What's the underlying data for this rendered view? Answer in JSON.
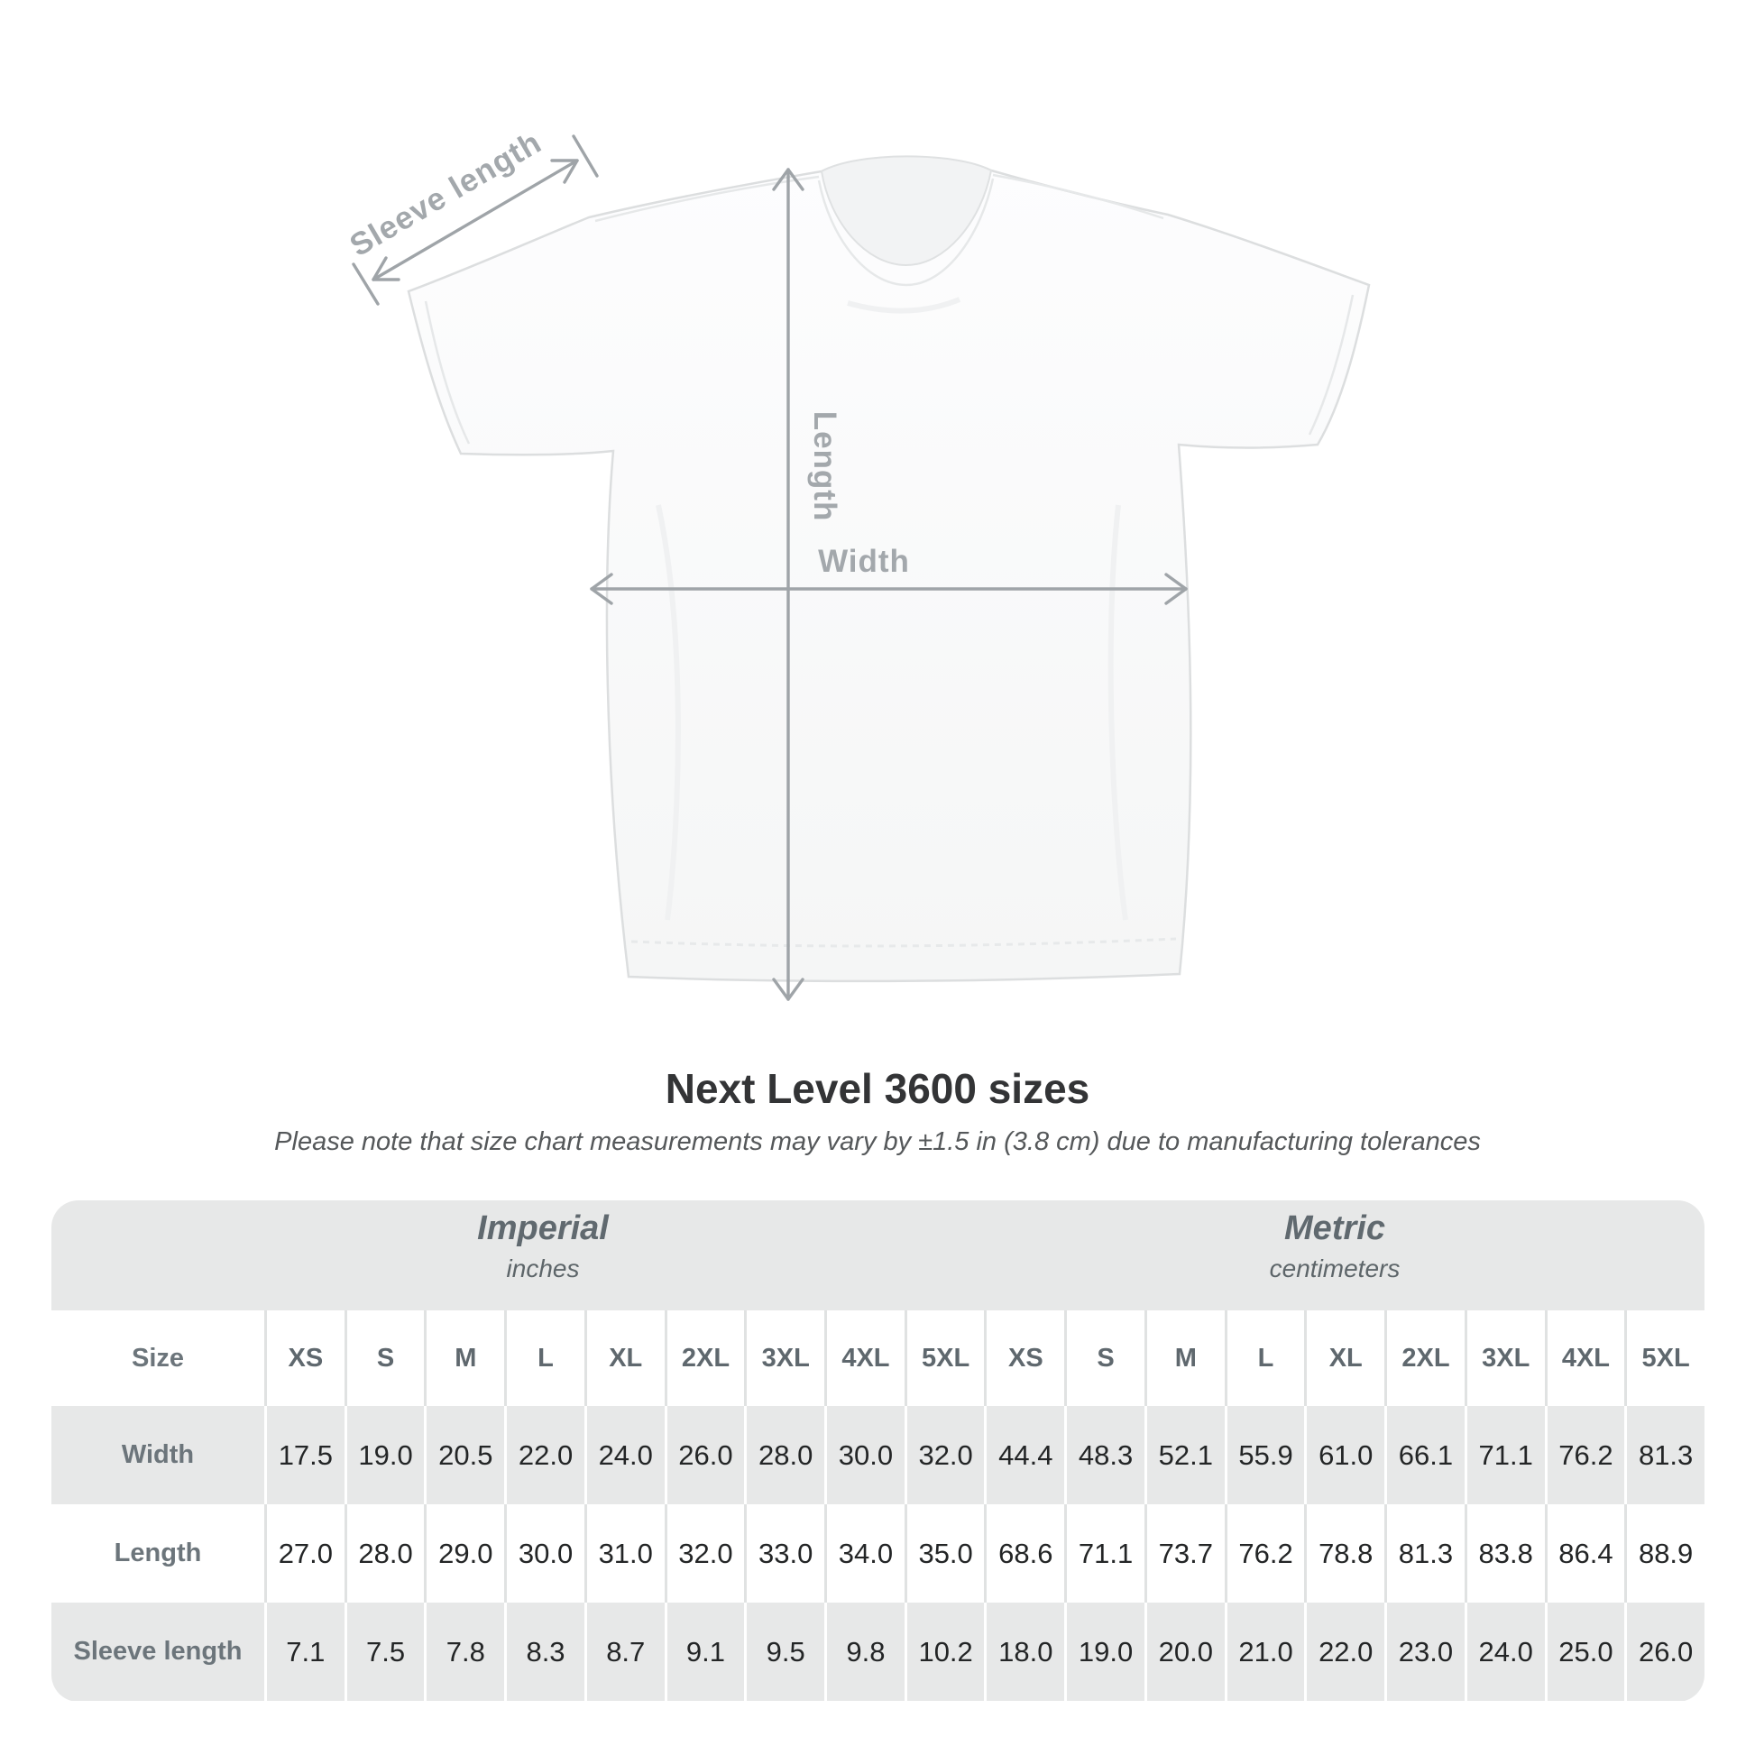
{
  "diagram": {
    "sleeve_label": "Sleeve length",
    "length_label": "Length",
    "width_label": "Width"
  },
  "chart_data": {
    "type": "table",
    "title": "Next Level 3600 sizes",
    "note": "Please note that size chart measurements may vary by ±1.5 in (3.8 cm) due to manufacturing tolerances",
    "unit_groups": [
      {
        "label": "Imperial",
        "units": "inches"
      },
      {
        "label": "Metric",
        "units": "centimeters"
      }
    ],
    "size_label": "Size",
    "sizes": [
      "XS",
      "S",
      "M",
      "L",
      "XL",
      "2XL",
      "3XL",
      "4XL",
      "5XL"
    ],
    "rows": [
      {
        "label": "Width",
        "imperial": [
          "17.5",
          "19.0",
          "20.5",
          "22.0",
          "24.0",
          "26.0",
          "28.0",
          "30.0",
          "32.0"
        ],
        "metric": [
          "44.4",
          "48.3",
          "52.1",
          "55.9",
          "61.0",
          "66.1",
          "71.1",
          "76.2",
          "81.3"
        ]
      },
      {
        "label": "Length",
        "imperial": [
          "27.0",
          "28.0",
          "29.0",
          "30.0",
          "31.0",
          "32.0",
          "33.0",
          "34.0",
          "35.0"
        ],
        "metric": [
          "68.6",
          "71.1",
          "73.7",
          "76.2",
          "78.8",
          "81.3",
          "83.8",
          "86.4",
          "88.9"
        ]
      },
      {
        "label": "Sleeve length",
        "imperial": [
          "7.1",
          "7.5",
          "7.8",
          "8.3",
          "8.7",
          "9.1",
          "9.5",
          "9.8",
          "10.2"
        ],
        "metric": [
          "18.0",
          "19.0",
          "20.0",
          "21.0",
          "22.0",
          "23.0",
          "24.0",
          "25.0",
          "26.0"
        ]
      }
    ]
  },
  "colors": {
    "table_band": "#e7e8e8",
    "dimension_arrows": "#9fa4a8",
    "title_text": "#333436"
  }
}
